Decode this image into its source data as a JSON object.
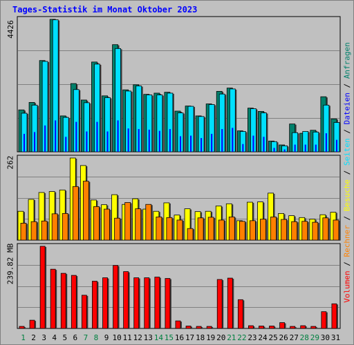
{
  "title": "Tages-Statistik im Monat Oktober 2023",
  "colors": {
    "anfragen": "#00806b",
    "dateien": "#0000ff",
    "seiten": "#00e0ff",
    "besuche": "#ffff00",
    "rechner": "#ff8000",
    "volumen": "#ff0000",
    "weekday": "#000000",
    "weekend": "#008040"
  },
  "axis": {
    "top_max_label": "4426",
    "mid_max_label": "262",
    "bot_max_label": "239.82 MB"
  },
  "legend": [
    {
      "label": "Volumen",
      "color": "#ff0000"
    },
    {
      "label": "Rechner",
      "color": "#ff8000"
    },
    {
      "label": "Besuche",
      "color": "#ffff00"
    },
    {
      "label": "Seiten",
      "color": "#00e0ff"
    },
    {
      "label": "Dateien",
      "color": "#0000ff"
    },
    {
      "label": "Anfragen",
      "color": "#00806b"
    }
  ],
  "legend_separator": " / ",
  "chart_data": {
    "type": "bar",
    "categories": [
      "1",
      "2",
      "3",
      "4",
      "5",
      "6",
      "7",
      "8",
      "9",
      "10",
      "11",
      "12",
      "13",
      "14",
      "15",
      "16",
      "17",
      "18",
      "19",
      "20",
      "21",
      "22",
      "23",
      "24",
      "25",
      "26",
      "27",
      "28",
      "29",
      "30",
      "31"
    ],
    "weekend_days": [
      1,
      7,
      8,
      14,
      15,
      21,
      22,
      28,
      29
    ],
    "panels": [
      {
        "name": "requests",
        "max": 4426,
        "series": [
          {
            "name": "Anfragen",
            "values": [
              1400,
              1650,
              3050,
              4426,
              1200,
              2280,
              1730,
              3000,
              1870,
              3580,
              2070,
              2240,
              1920,
              1960,
              1990,
              1360,
              1530,
              1200,
              1600,
              2020,
              2130,
              700,
              1460,
              1350,
              360,
              230,
              930,
              620,
              720,
              1840,
              1100
            ]
          },
          {
            "name": "Seiten",
            "values": [
              1290,
              1560,
              3020,
              4410,
              1150,
              2080,
              1640,
              2930,
              1810,
              3450,
              2030,
              2200,
              1900,
              1900,
              1960,
              1300,
              1520,
              1180,
              1580,
              1930,
              2100,
              680,
              1440,
              1300,
              340,
              200,
              640,
              680,
              660,
              1560,
              980
            ]
          },
          {
            "name": "Dateien",
            "values": [
              600,
              660,
              880,
              1050,
              500,
              1000,
              680,
              1000,
              680,
              1050,
              780,
              760,
              740,
              700,
              760,
              520,
              540,
              460,
              600,
              760,
              800,
              260,
              540,
              500,
              130,
              80,
              240,
              240,
              240,
              620,
              400
            ]
          }
        ]
      },
      {
        "name": "visits",
        "max": 262,
        "series": [
          {
            "name": "Besuche",
            "values": [
              92,
              130,
              152,
              155,
              160,
              262,
              238,
              128,
              113,
              145,
              114,
              132,
              99,
              92,
              119,
              80,
              100,
              91,
              92,
              109,
              116,
              62,
              121,
              122,
              150,
              85,
              78,
              72,
              67,
              81,
              89
            ]
          },
          {
            "name": "Rechner",
            "values": [
              54,
              59,
              61,
              84,
              85,
              171,
              188,
              107,
              99,
              70,
              120,
              100,
              114,
              74,
              72,
              64,
              37,
              71,
              73,
              64,
              74,
              60,
              62,
              67,
              74,
              66,
              59,
              60,
              57,
              71,
              64
            ]
          }
        ]
      },
      {
        "name": "volume",
        "max": 239.82,
        "series": [
          {
            "name": "Volumen",
            "values": [
              6,
              24,
              240,
              173,
              161,
              155,
              97,
              138,
              148,
              184,
              166,
              148,
              148,
              150,
              146,
              22,
              7,
              6,
              6,
              143,
              147,
              84,
              8,
              7,
              7,
              17,
              6,
              8,
              6,
              49,
              72
            ]
          }
        ]
      }
    ]
  }
}
